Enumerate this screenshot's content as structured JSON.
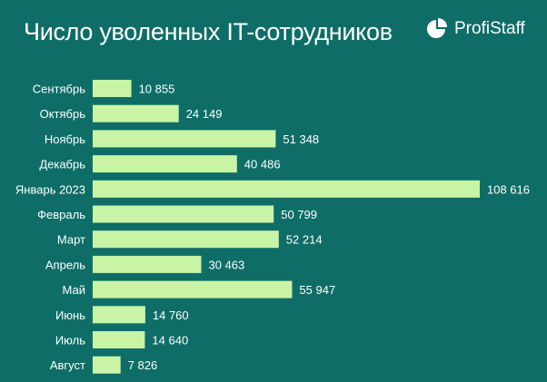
{
  "title": "Число уволенных IT-сотрудников",
  "brand": {
    "name": "ProfiStaff",
    "icon": "pie-logo-icon"
  },
  "colors": {
    "background": "#0e6e67",
    "bar": "#c9f4a6",
    "text": "#ffffff"
  },
  "chart_data": {
    "type": "bar",
    "orientation": "horizontal",
    "title": "Число уволенных IT-сотрудников",
    "categories": [
      "Сентябрь",
      "Октябрь",
      "Ноябрь",
      "Декабрь",
      "Январь 2023",
      "Февраль",
      "Март",
      "Апрель",
      "Май",
      "Июнь",
      "Июль",
      "Август"
    ],
    "values": [
      10855,
      24149,
      51348,
      40486,
      108616,
      50799,
      52214,
      30463,
      55947,
      14760,
      14640,
      7826
    ],
    "value_labels": [
      "10 855",
      "24 149",
      "51 348",
      "40 486",
      "108 616",
      "50 799",
      "52 214",
      "30 463",
      "55 947",
      "14 760",
      "14 640",
      "7 826"
    ],
    "xlim": [
      0,
      108616
    ],
    "grid": false,
    "legend": "none"
  }
}
